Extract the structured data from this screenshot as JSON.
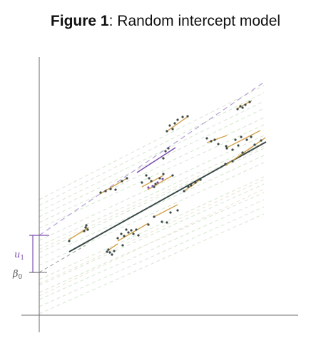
{
  "title": {
    "label": "Figure 1",
    "text": "Random intercept model"
  },
  "labels": {
    "u1": {
      "sym": "u",
      "sub": "1"
    },
    "beta0": {
      "sym": "β",
      "sub": "0"
    }
  },
  "colors": {
    "axis": "#6b6b6b",
    "main_line": "#3a4a48",
    "group_line": "#d4a24c",
    "highlight": "#7e4fb0",
    "dashed_faint": "#cfe6c8",
    "dashed_highlight": "#b9a6d8",
    "dashed_beta": "#9a9a9a",
    "points": "#3c4a48"
  }
}
